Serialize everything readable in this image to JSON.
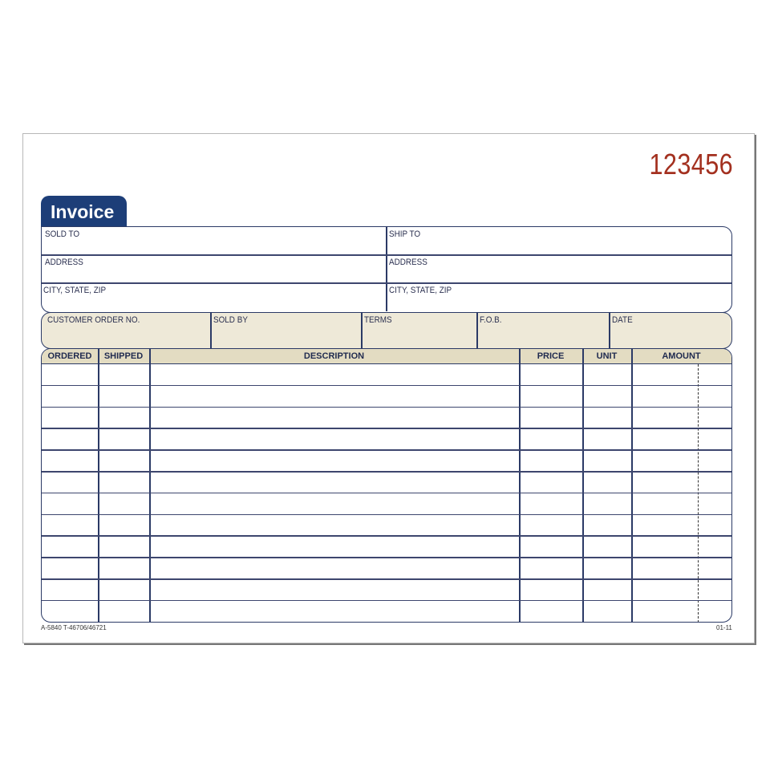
{
  "form_number": "123456",
  "title": "Invoice",
  "address_block": {
    "sold_to": "SOLD TO",
    "ship_to": "SHIP TO",
    "address_left": "ADDRESS",
    "address_right": "ADDRESS",
    "city_left": "CITY, STATE, ZIP",
    "city_right": "CITY, STATE, ZIP"
  },
  "order_info": [
    "CUSTOMER ORDER NO.",
    "SOLD BY",
    "TERMS",
    "F.O.B.",
    "DATE"
  ],
  "table": {
    "columns": [
      "ORDERED",
      "SHIPPED",
      "DESCRIPTION",
      "PRICE",
      "UNIT",
      "AMOUNT"
    ]
  },
  "footer": {
    "left": "A-5840  T-46706/46721",
    "right": "01-11"
  },
  "colors": {
    "navy": "#1d3e78",
    "number_red": "#a3301f",
    "tan": "#eee9d8"
  }
}
